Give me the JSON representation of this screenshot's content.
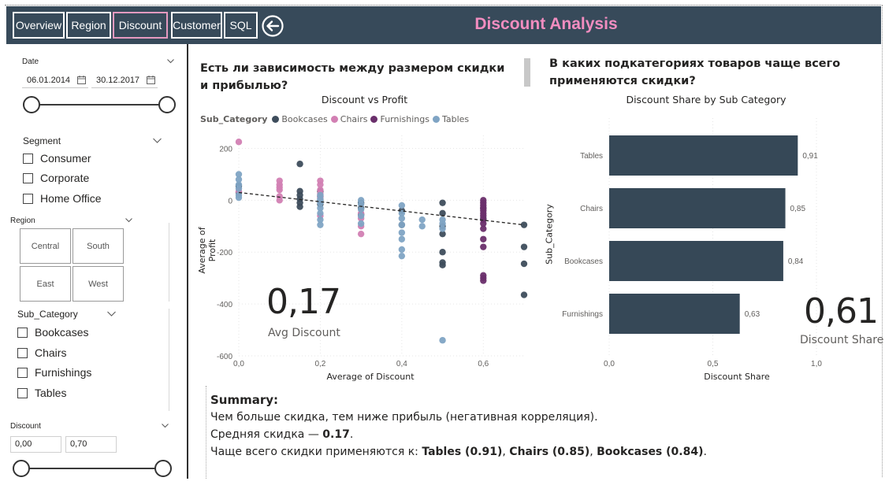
{
  "header": {
    "title": "Discount Analysis",
    "tabs": [
      {
        "label": "Overview",
        "active": false
      },
      {
        "label": "Region",
        "active": false
      },
      {
        "label": "Discount",
        "active": true
      },
      {
        "label": "Customer",
        "active": false
      },
      {
        "label": "SQL",
        "active": false
      }
    ],
    "back_icon": "back-arrow-circle-icon"
  },
  "filters": {
    "date": {
      "label": "Date",
      "start": "06.01.2014",
      "end": "30.12.2017"
    },
    "segment": {
      "label": "Segment",
      "options": [
        "Consumer",
        "Corporate",
        "Home Office"
      ]
    },
    "region": {
      "label": "Region",
      "tiles": [
        "Central",
        "South",
        "East",
        "West"
      ]
    },
    "sub_category": {
      "label": "Sub_Category",
      "options": [
        "Bookcases",
        "Chairs",
        "Furnishings",
        "Tables"
      ]
    },
    "discount": {
      "label": "Discount",
      "min": "0,00",
      "max": "0,70"
    }
  },
  "left_section": {
    "question": "Есть ли зависимость между размером скидки и прибылью?",
    "kpi_value": "0,17",
    "kpi_label": "Avg Discount"
  },
  "right_section": {
    "question": "В каких подкатегориях товаров чаще всего применяются скидки?",
    "kpi_value": "0,61",
    "kpi_label": "Discount Share"
  },
  "colors": {
    "header_bg": "#374a5a",
    "title_pink": "#f28dc0",
    "Bookcases": "#3e4d5c",
    "Chairs": "#d27fb3",
    "Furnishings": "#6a2f6b",
    "Tables": "#7fa4c4",
    "bar": "#364857"
  },
  "summary": {
    "title": "Summary:",
    "line1": "Чем больше скидка, тем ниже прибыль (негативная корреляция).",
    "line2_prefix": "Средняя скидка — ",
    "line2_value": "0.17",
    "line2_suffix": ".",
    "line3_prefix": "Чаще всего скидки применяются к: ",
    "line3_item1": "Tables (0.91)",
    "line3_sep1": ", ",
    "line3_item2": "Chairs (0.85)",
    "line3_sep2": ", ",
    "line3_item3": "Bookcases (0.84)",
    "line3_suffix": "."
  },
  "chart_data": [
    {
      "type": "scatter",
      "title": "Discount vs Profit",
      "xlabel": "Average of Discount",
      "ylabel": "Average of Profit",
      "legend_title": "Sub_Category",
      "legend_position": "top-left",
      "xlim": [
        0,
        0.7
      ],
      "ylim": [
        -600,
        250
      ],
      "x_ticks": [
        "0,0",
        "0,2",
        "0,4",
        "0,6"
      ],
      "y_ticks": [
        "200",
        "0",
        "-200",
        "-400",
        "-600"
      ],
      "grid": true,
      "trendline": {
        "style": "dashed",
        "from": [
          0,
          30
        ],
        "to": [
          0.7,
          -95
        ]
      },
      "series": [
        {
          "name": "Bookcases",
          "points": [
            [
              0.0,
              55
            ],
            [
              0.0,
              30
            ],
            [
              0.15,
              140
            ],
            [
              0.15,
              35
            ],
            [
              0.15,
              20
            ],
            [
              0.15,
              5
            ],
            [
              0.15,
              -10
            ],
            [
              0.15,
              -25
            ],
            [
              0.2,
              35
            ],
            [
              0.2,
              15
            ],
            [
              0.2,
              0
            ],
            [
              0.2,
              -15
            ],
            [
              0.3,
              -10
            ],
            [
              0.3,
              -30
            ],
            [
              0.3,
              -55
            ],
            [
              0.4,
              -40
            ],
            [
              0.4,
              -95
            ],
            [
              0.5,
              -10
            ],
            [
              0.5,
              -50
            ],
            [
              0.5,
              -100
            ],
            [
              0.5,
              -130
            ],
            [
              0.5,
              -200
            ],
            [
              0.5,
              -240
            ],
            [
              0.5,
              -250
            ],
            [
              0.6,
              -30
            ],
            [
              0.6,
              -70
            ],
            [
              0.7,
              -95
            ],
            [
              0.7,
              -180
            ],
            [
              0.7,
              -245
            ],
            [
              0.7,
              -365
            ]
          ]
        },
        {
          "name": "Chairs",
          "points": [
            [
              0.0,
              225
            ],
            [
              0.0,
              35
            ],
            [
              0.1,
              75
            ],
            [
              0.1,
              60
            ],
            [
              0.1,
              50
            ],
            [
              0.1,
              40
            ],
            [
              0.1,
              15
            ],
            [
              0.1,
              0
            ],
            [
              0.2,
              75
            ],
            [
              0.2,
              60
            ],
            [
              0.2,
              40
            ],
            [
              0.2,
              25
            ],
            [
              0.2,
              10
            ],
            [
              0.2,
              -60
            ],
            [
              0.3,
              -50
            ],
            [
              0.3,
              -70
            ],
            [
              0.3,
              -100
            ],
            [
              0.3,
              -130
            ]
          ]
        },
        {
          "name": "Furnishings",
          "points": [
            [
              0.6,
              0
            ],
            [
              0.6,
              -10
            ],
            [
              0.6,
              -20
            ],
            [
              0.6,
              -30
            ],
            [
              0.6,
              -40
            ],
            [
              0.6,
              -50
            ],
            [
              0.6,
              -60
            ],
            [
              0.6,
              -75
            ],
            [
              0.6,
              -90
            ],
            [
              0.6,
              -110
            ],
            [
              0.6,
              -150
            ],
            [
              0.6,
              -180
            ],
            [
              0.6,
              -290
            ],
            [
              0.6,
              -300
            ],
            [
              0.6,
              -310
            ]
          ]
        },
        {
          "name": "Tables",
          "points": [
            [
              0.0,
              100
            ],
            [
              0.0,
              80
            ],
            [
              0.0,
              60
            ],
            [
              0.0,
              45
            ],
            [
              0.0,
              20
            ],
            [
              0.0,
              10
            ],
            [
              0.2,
              -75
            ],
            [
              0.2,
              -95
            ],
            [
              0.2,
              -50
            ],
            [
              0.2,
              -30
            ],
            [
              0.2,
              -10
            ],
            [
              0.2,
              5
            ],
            [
              0.2,
              20
            ],
            [
              0.3,
              0
            ],
            [
              0.3,
              -15
            ],
            [
              0.3,
              -35
            ],
            [
              0.3,
              -60
            ],
            [
              0.3,
              -90
            ],
            [
              0.4,
              -20
            ],
            [
              0.4,
              -50
            ],
            [
              0.4,
              -70
            ],
            [
              0.4,
              -95
            ],
            [
              0.4,
              -125
            ],
            [
              0.4,
              -150
            ],
            [
              0.4,
              -190
            ],
            [
              0.4,
              -215
            ],
            [
              0.45,
              -75
            ],
            [
              0.45,
              -100
            ],
            [
              0.5,
              -75
            ],
            [
              0.5,
              -90
            ],
            [
              0.5,
              -110
            ],
            [
              0.5,
              -540
            ]
          ]
        }
      ]
    },
    {
      "type": "bar",
      "orientation": "horizontal",
      "title": "Discount Share by Sub Category",
      "xlabel": "Discount Share",
      "ylabel": "Sub_Category",
      "categories": [
        "Tables",
        "Chairs",
        "Bookcases",
        "Furnishings"
      ],
      "values": [
        0.91,
        0.85,
        0.84,
        0.63
      ],
      "value_labels": [
        "0,91",
        "0,85",
        "0,84",
        "0,63"
      ],
      "xlim": [
        0,
        1.0
      ],
      "x_ticks": [
        "0,0",
        "0,5",
        "1,0"
      ],
      "grid": true
    }
  ]
}
